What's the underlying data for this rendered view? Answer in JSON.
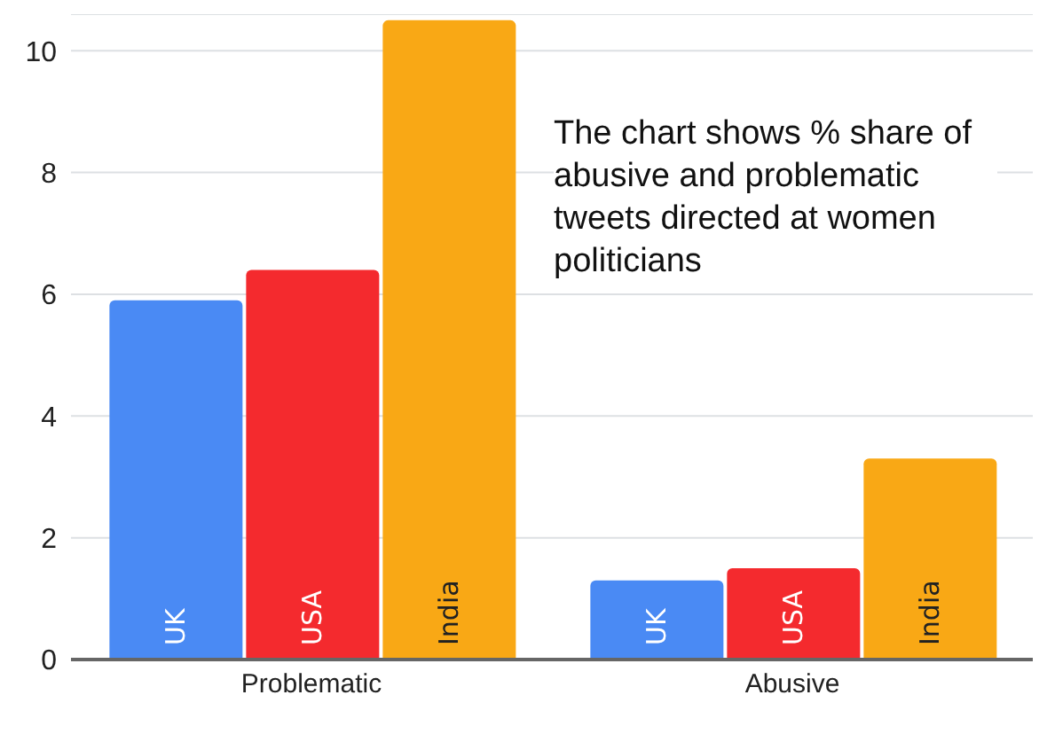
{
  "chart_data": {
    "type": "bar",
    "categories": [
      "Problematic",
      "Abusive"
    ],
    "series": [
      {
        "name": "UK",
        "color": "#4a8af4",
        "values": [
          5.9,
          1.3
        ]
      },
      {
        "name": "USA",
        "color": "#f42a2e",
        "values": [
          6.4,
          1.5
        ]
      },
      {
        "name": "India",
        "color": "#f9a815",
        "values": [
          10.5,
          3.3
        ]
      }
    ],
    "ylim": [
      0,
      10.6
    ],
    "yticks": [
      0,
      2,
      4,
      6,
      8,
      10
    ],
    "grid": "y",
    "legend": false,
    "annotations": [
      "The chart shows % share of abusive and problematic tweets directed at women politicians"
    ]
  }
}
